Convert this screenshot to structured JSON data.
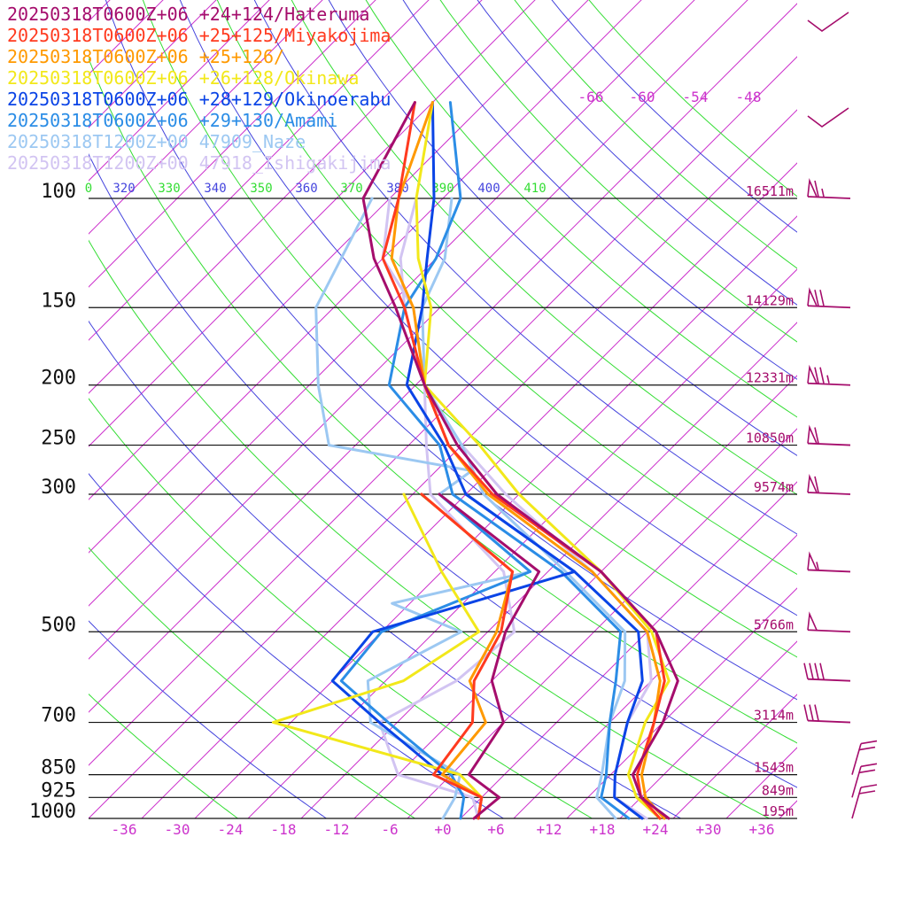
{
  "legend": [
    {
      "text": "20250318T0600Z+06 +24+124/Hateruma",
      "color": "#a50d6c"
    },
    {
      "text": "20250318T0600Z+06 +25+125/Miyakojima",
      "color": "#ff3a1f"
    },
    {
      "text": "20250318T0600Z+06 +25+126/",
      "color": "#ff9900"
    },
    {
      "text": "20250318T0600Z+06 +26+128/Okinawa",
      "color": "#f2e81a"
    },
    {
      "text": "20250318T0600Z+06 +28+129/Okinoerabu",
      "color": "#0a44e6"
    },
    {
      "text": "20250318T0600Z+06 +29+130/Amami",
      "color": "#2b8de6"
    },
    {
      "text": "20250318T1200Z+00 47909_Naze",
      "color": "#9cc8f2"
    },
    {
      "text": "20250318T1200Z+00 47918_Ishigakijima",
      "color": "#d2c4f2"
    }
  ],
  "chart_data": {
    "type": "line",
    "diagram": "skew-T log-p",
    "pressure_levels": [
      {
        "p": 100,
        "label": "100",
        "height": "16511m"
      },
      {
        "p": 150,
        "label": "150",
        "height": "14129m"
      },
      {
        "p": 200,
        "label": "200",
        "height": "12331m"
      },
      {
        "p": 250,
        "label": "250",
        "height": "10850m"
      },
      {
        "p": 300,
        "label": "300",
        "height": "9574m"
      },
      {
        "p": 500,
        "label": "500",
        "height": "5766m"
      },
      {
        "p": 700,
        "label": "700",
        "height": "3114m"
      },
      {
        "p": 850,
        "label": "850",
        "height": "1543m"
      },
      {
        "p": 925,
        "label": "925",
        "height": "849m"
      },
      {
        "p": 1000,
        "label": "1000",
        "height": "195m"
      }
    ],
    "temperature_ticks": [
      "-36",
      "-30",
      "-24",
      "-18",
      "-12",
      "-6",
      "+0",
      "+6",
      "+12",
      "+18",
      "+24",
      "+30",
      "+36"
    ],
    "temperature_tick_values": [
      -36,
      -30,
      -24,
      -18,
      -12,
      -6,
      0,
      6,
      12,
      18,
      24,
      30,
      36
    ],
    "upper_temperature_ticks": [
      "-66",
      "-60",
      "-54",
      "-48"
    ],
    "theta_ticks": [
      {
        "label": "0",
        "color": "#33dd33"
      },
      {
        "label": "320",
        "color": "#4444dd"
      },
      {
        "label": "330",
        "color": "#33dd33"
      },
      {
        "label": "340",
        "color": "#4444dd"
      },
      {
        "label": "350",
        "color": "#33dd33"
      },
      {
        "label": "360",
        "color": "#4444dd"
      },
      {
        "label": "370",
        "color": "#33dd33"
      },
      {
        "label": "380",
        "color": "#4444dd"
      },
      {
        "label": "390",
        "color": "#33dd33"
      },
      {
        "label": "400",
        "color": "#4444dd"
      },
      {
        "label": "410",
        "color": "#33dd33"
      }
    ],
    "x_range_celsius_at_1000hPa": [
      -40,
      40
    ],
    "p_range": [
      100,
      1000
    ],
    "grid": true,
    "series": [
      {
        "name": "20250318T0600Z+06 +24+124/Hateruma",
        "color": "#a50d6c",
        "temperature": [
          [
            1000,
            25.5
          ],
          [
            925,
            20
          ],
          [
            850,
            16.5
          ],
          [
            700,
            14
          ],
          [
            600,
            11
          ],
          [
            500,
            3
          ],
          [
            400,
            -10
          ],
          [
            300,
            -30.5
          ],
          [
            250,
            -40.5
          ],
          [
            200,
            -51
          ],
          [
            150,
            -63
          ],
          [
            125,
            -71
          ],
          [
            100,
            -79
          ],
          [
            70,
            -84
          ]
        ],
        "dewpoint": [
          [
            1000,
            3.5
          ],
          [
            925,
            4
          ],
          [
            850,
            -2
          ],
          [
            700,
            -4
          ],
          [
            600,
            -10
          ],
          [
            500,
            -14
          ],
          [
            400,
            -17
          ],
          [
            300,
            -37
          ]
        ]
      },
      {
        "name": "20250318T0600Z+06 +25+125/Miyakojima",
        "color": "#ff3a1f",
        "temperature": [
          [
            1000,
            24.5
          ],
          [
            925,
            20
          ],
          [
            850,
            17
          ],
          [
            700,
            13
          ],
          [
            600,
            9.5
          ],
          [
            500,
            3
          ],
          [
            400,
            -10
          ],
          [
            300,
            -31
          ],
          [
            250,
            -41.5
          ],
          [
            200,
            -51
          ],
          [
            150,
            -62
          ],
          [
            125,
            -70
          ],
          [
            100,
            -75
          ],
          [
            70,
            -84
          ]
        ],
        "dewpoint": [
          [
            1000,
            4
          ],
          [
            925,
            2
          ],
          [
            850,
            -6
          ],
          [
            700,
            -7.5
          ],
          [
            600,
            -12
          ],
          [
            500,
            -14.5
          ],
          [
            400,
            -20
          ],
          [
            300,
            -39
          ]
        ]
      },
      {
        "name": "20250318T0600Z+06 +25+126/",
        "color": "#ff9900",
        "temperature": [
          [
            1000,
            25
          ],
          [
            925,
            20.5
          ],
          [
            850,
            17.5
          ],
          [
            700,
            13
          ],
          [
            600,
            9
          ],
          [
            500,
            2
          ],
          [
            400,
            -11
          ],
          [
            300,
            -31.5
          ],
          [
            250,
            -41.5
          ],
          [
            200,
            -51
          ],
          [
            150,
            -61
          ],
          [
            125,
            -69
          ],
          [
            100,
            -75
          ],
          [
            70,
            -82
          ]
        ],
        "dewpoint": [
          [
            1000,
            4
          ],
          [
            925,
            2
          ],
          [
            850,
            -5
          ],
          [
            700,
            -6
          ],
          [
            600,
            -12.5
          ],
          [
            500,
            -15
          ],
          [
            400,
            -20
          ],
          [
            300,
            -39
          ]
        ]
      },
      {
        "name": "20250318T0600Z+06 +26+128/Okinawa",
        "color": "#f2e81a",
        "temperature": [
          [
            1000,
            24.5
          ],
          [
            925,
            19.5
          ],
          [
            850,
            16
          ],
          [
            700,
            12
          ],
          [
            600,
            10
          ],
          [
            500,
            2.5
          ],
          [
            400,
            -10
          ],
          [
            300,
            -28
          ],
          [
            250,
            -38
          ],
          [
            200,
            -51
          ],
          [
            150,
            -59
          ],
          [
            125,
            -66
          ],
          [
            100,
            -73
          ],
          [
            70,
            -82
          ]
        ],
        "dewpoint": [
          [
            1000,
            4
          ],
          [
            925,
            2
          ],
          [
            850,
            -3
          ],
          [
            700,
            -30
          ],
          [
            600,
            -20
          ],
          [
            500,
            -17
          ],
          [
            400,
            -28
          ],
          [
            300,
            -41
          ]
        ]
      },
      {
        "name": "20250318T0600Z+06 +28+129/Okinoerabu",
        "color": "#0a44e6",
        "temperature": [
          [
            1000,
            22.5
          ],
          [
            925,
            17
          ],
          [
            850,
            14.5
          ],
          [
            700,
            10
          ],
          [
            600,
            7
          ],
          [
            500,
            1
          ],
          [
            400,
            -13
          ],
          [
            300,
            -34
          ],
          [
            250,
            -42
          ],
          [
            200,
            -53
          ],
          [
            150,
            -60
          ],
          [
            125,
            -65
          ],
          [
            100,
            -71
          ],
          [
            70,
            -82
          ]
        ],
        "dewpoint": [
          [
            1000,
            4
          ],
          [
            925,
            2
          ],
          [
            850,
            -5
          ],
          [
            700,
            -18
          ],
          [
            600,
            -28
          ],
          [
            500,
            -29
          ],
          [
            400,
            -13
          ],
          [
            300,
            -34
          ]
        ]
      },
      {
        "name": "20250318T0600Z+06 +29+130/Amami",
        "color": "#2b8de6",
        "temperature": [
          [
            1000,
            21
          ],
          [
            925,
            15.5
          ],
          [
            850,
            13.5
          ],
          [
            700,
            8
          ],
          [
            600,
            4
          ],
          [
            500,
            -1
          ],
          [
            400,
            -14.5
          ],
          [
            300,
            -35.5
          ],
          [
            250,
            -42.5
          ],
          [
            200,
            -55
          ],
          [
            150,
            -62
          ],
          [
            125,
            -64
          ],
          [
            100,
            -68
          ],
          [
            70,
            -80
          ]
        ],
        "dewpoint": [
          [
            1000,
            2
          ],
          [
            925,
            0
          ],
          [
            850,
            -4
          ],
          [
            700,
            -17
          ],
          [
            600,
            -27
          ],
          [
            500,
            -28
          ],
          [
            400,
            -18
          ],
          [
            300,
            -37
          ]
        ]
      },
      {
        "name": "20250318T1200Z+00 47909_Naze",
        "color": "#9cc8f2",
        "temperature": [
          [
            1000,
            19.5
          ],
          [
            925,
            15
          ],
          [
            850,
            13
          ],
          [
            700,
            8
          ],
          [
            600,
            5
          ],
          [
            500,
            -0.5
          ],
          [
            400,
            -14
          ],
          [
            300,
            -32
          ],
          [
            250,
            -40
          ],
          [
            200,
            -51
          ],
          [
            150,
            -60
          ],
          [
            125,
            -63
          ],
          [
            100,
            -69
          ]
        ],
        "dewpoint": [
          [
            1000,
            0
          ],
          [
            925,
            -1
          ],
          [
            850,
            -3
          ],
          [
            700,
            -19
          ],
          [
            600,
            -24
          ],
          [
            500,
            -19
          ],
          [
            450,
            -30
          ],
          [
            400,
            -18
          ],
          [
            300,
            -37
          ],
          [
            275,
            -36
          ],
          [
            250,
            -55
          ],
          [
            200,
            -63
          ],
          [
            150,
            -72
          ],
          [
            100,
            -78
          ]
        ]
      },
      {
        "name": "20250318T1200Z+00 47918_Ishigakijima",
        "color": "#d2c4f2",
        "temperature": [
          [
            1000,
            23
          ],
          [
            925,
            17
          ],
          [
            850,
            14.5
          ],
          [
            700,
            10
          ],
          [
            600,
            8
          ],
          [
            500,
            2
          ],
          [
            400,
            -11
          ],
          [
            300,
            -29.5
          ],
          [
            250,
            -40
          ],
          [
            200,
            -51
          ],
          [
            150,
            -62
          ],
          [
            125,
            -68
          ],
          [
            100,
            -73
          ]
        ],
        "dewpoint": [
          [
            1000,
            4
          ],
          [
            925,
            1
          ],
          [
            850,
            -10
          ],
          [
            700,
            -18
          ],
          [
            600,
            -14
          ],
          [
            500,
            -13
          ],
          [
            400,
            -21
          ],
          [
            300,
            -38
          ],
          [
            250,
            -44
          ],
          [
            200,
            -51
          ],
          [
            150,
            -61
          ],
          [
            125,
            -70
          ],
          [
            100,
            -76
          ]
        ]
      }
    ],
    "wind_barbs_hateruma": [
      {
        "p": 100,
        "knots": 65
      },
      {
        "p": 150,
        "knots": 70
      },
      {
        "p": 200,
        "knots": 75
      },
      {
        "p": 250,
        "knots": 60
      },
      {
        "p": 300,
        "knots": 60
      },
      {
        "p": 400,
        "knots": 55
      },
      {
        "p": 500,
        "knots": 50
      },
      {
        "p": 600,
        "knots": 40
      },
      {
        "p": 700,
        "knots": 30
      }
    ]
  }
}
